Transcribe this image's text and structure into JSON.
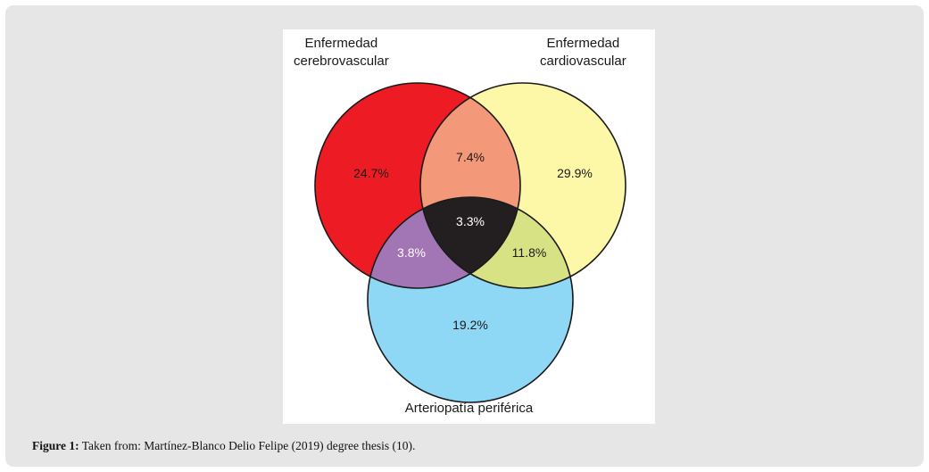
{
  "sets": {
    "cerebro": "Enfermedad\ncerebrovascular",
    "cardio": "Enfermedad\ncardiovascular",
    "arterio": "Arteriopatía periférica"
  },
  "regions": {
    "cerebro_only": "24.7%",
    "cardio_only": "29.9%",
    "arterio_only": "19.2%",
    "cerebro_cardio": "7.4%",
    "cerebro_arterio": "3.8%",
    "cardio_arterio": "11.8%",
    "all_three": "3.3%"
  },
  "colors": {
    "cerebro_only": "#ed1c24",
    "cardio_only": "#fdf7a8",
    "arterio_only": "#8fd8f5",
    "cerebro_cardio": "#f4987a",
    "cerebro_arterio": "#a275b5",
    "cardio_arterio": "#d6e283",
    "all_three": "#231f20"
  },
  "caption": {
    "label": "Figure 1:",
    "text": " Taken from: Martínez-Blanco Delio Felipe (2019) degree thesis (10)."
  }
}
